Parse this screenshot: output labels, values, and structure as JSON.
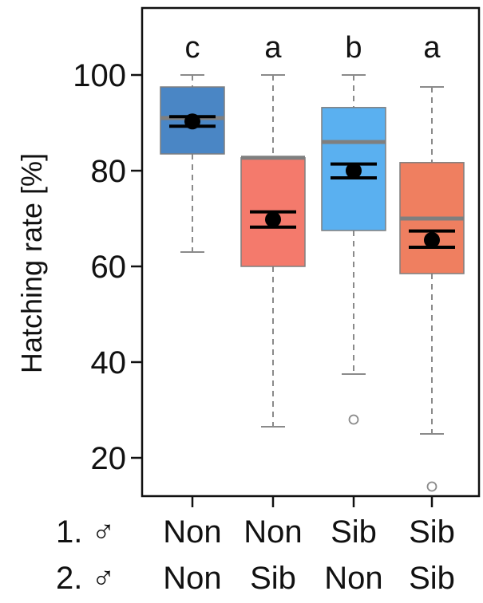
{
  "chart_data": {
    "type": "box",
    "ylabel": "Hatching rate [%]",
    "ylim": [
      12,
      114
    ],
    "yticks": [
      20,
      40,
      60,
      80,
      100
    ],
    "grid": false,
    "row_labels": [
      "1. ♂",
      "2. ♂"
    ],
    "categories": [
      {
        "row1": "Non",
        "row2": "Non",
        "letter": "c",
        "color": "#4a86c5",
        "whisker_low": 63,
        "q1": 83.5,
        "median": 91,
        "q3": 97.5,
        "whisker_high": 100,
        "outliers": [],
        "mean": 90.3,
        "ci_low": 89.3,
        "ci_high": 91.3
      },
      {
        "row1": "Non",
        "row2": "Sib",
        "letter": "a",
        "color": "#f47a6c",
        "whisker_low": 26.5,
        "q1": 60,
        "median": 82.7,
        "q3": 82.7,
        "whisker_high": 100,
        "outliers": [],
        "mean": 69.8,
        "ci_low": 68.2,
        "ci_high": 71.4
      },
      {
        "row1": "Sib",
        "row2": "Non",
        "letter": "b",
        "color": "#5ab0f0",
        "whisker_low": 37.5,
        "q1": 67.5,
        "median": 86,
        "q3": 93.2,
        "whisker_high": 100,
        "outliers": [
          28
        ],
        "mean": 80,
        "ci_low": 78.5,
        "ci_high": 81.4
      },
      {
        "row1": "Sib",
        "row2": "Sib",
        "letter": "a",
        "color": "#ef7f60",
        "whisker_low": 25,
        "q1": 58.5,
        "median": 70,
        "q3": 81.7,
        "whisker_high": 97.5,
        "outliers": [
          14
        ],
        "mean": 65.5,
        "ci_low": 64,
        "ci_high": 67.4
      }
    ]
  },
  "colors": {
    "median_line": "#7f7f7f",
    "box_border": "#7f7f7f",
    "whisker": "#8a8a8a",
    "mean_marker": "#000000"
  }
}
